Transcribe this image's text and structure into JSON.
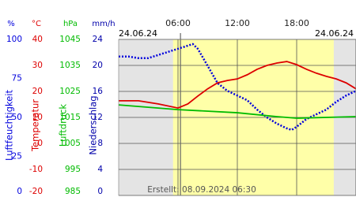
{
  "chart_data": {
    "type": "line",
    "date_left": "24.06.24",
    "date_right": "24.06.24",
    "footer": "Erstellt: 08.09.2024 06:30",
    "xlim": [
      0,
      24
    ],
    "xticks": [
      {
        "value": 6,
        "label": "06:00"
      },
      {
        "value": 12,
        "label": "12:00"
      },
      {
        "value": 18,
        "label": "18:00"
      }
    ],
    "shaded_x": [
      5.5,
      21.75
    ],
    "marker_x": 6.25,
    "axes": [
      {
        "title": "Luftfeuchtigkeit",
        "unit": "%",
        "color": "#0000dd",
        "lim": [
          0,
          100
        ],
        "ticks": [
          100,
          75,
          50,
          25,
          0
        ]
      },
      {
        "title": "Temperatur",
        "unit": "°C",
        "color": "#dd0000",
        "lim": [
          -20,
          40
        ],
        "ticks": [
          40,
          30,
          20,
          10,
          0,
          -10,
          -20
        ]
      },
      {
        "title": "Luftdruck",
        "unit": "hPa",
        "color": "#00bb00",
        "lim": [
          985,
          1045
        ],
        "ticks": [
          1045,
          1035,
          1025,
          1015,
          1005,
          995,
          985
        ]
      },
      {
        "title": "Niederschlag",
        "unit": "mm/h",
        "color": "#0000aa",
        "lim": [
          0,
          24
        ],
        "ticks": [
          24,
          20,
          16,
          12,
          8,
          4,
          0
        ]
      }
    ],
    "series": [
      {
        "name": "Luftfeuchtigkeit",
        "color": "#0000dd",
        "axis": 0,
        "dotted": true,
        "x": [
          0,
          1,
          2,
          3,
          4,
          5,
          6,
          7,
          7.5,
          8,
          9,
          10,
          11,
          12,
          13,
          14,
          15,
          16,
          17,
          17.5,
          18,
          19,
          20,
          21,
          22,
          23,
          24
        ],
        "values": [
          89,
          89,
          88,
          88,
          90,
          92,
          94,
          96,
          97,
          94,
          83,
          72,
          67,
          64,
          61,
          55,
          50,
          46,
          43,
          42,
          44,
          49,
          52,
          55,
          60,
          64,
          67
        ]
      },
      {
        "name": "Temperatur",
        "color": "#dd0000",
        "axis": 1,
        "x": [
          0,
          2,
          4,
          6,
          7,
          8,
          9,
          10,
          11,
          12,
          13,
          14,
          15,
          16,
          17,
          18,
          19,
          20,
          21,
          22,
          23,
          24
        ],
        "values": [
          16.4,
          16.4,
          15.2,
          13.6,
          15.2,
          18.2,
          21,
          23.3,
          24.2,
          24.8,
          26.4,
          28.5,
          30,
          30.9,
          31.5,
          30.3,
          28.5,
          27,
          25.8,
          24.8,
          23.3,
          21
        ]
      },
      {
        "name": "Luftdruck",
        "color": "#00bb00",
        "axis": 2,
        "x": [
          0,
          6,
          12,
          16,
          18,
          24
        ],
        "values": [
          1019.8,
          1018,
          1016.8,
          1015.3,
          1014.7,
          1015.3
        ]
      }
    ]
  }
}
